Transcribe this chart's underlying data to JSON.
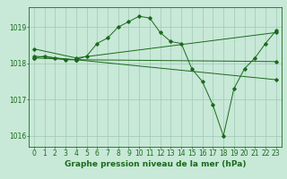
{
  "xlabel": "Graphe pression niveau de la mer (hPa)",
  "xlim": [
    -0.5,
    23.5
  ],
  "ylim": [
    1015.7,
    1019.55
  ],
  "yticks": [
    1016,
    1017,
    1018,
    1019
  ],
  "xticks": [
    0,
    1,
    2,
    3,
    4,
    5,
    6,
    7,
    8,
    9,
    10,
    11,
    12,
    13,
    14,
    15,
    16,
    17,
    18,
    19,
    20,
    21,
    22,
    23
  ],
  "bg_color": "#c8e8d8",
  "line_color": "#1a6b1a",
  "grid_color": "#a0c8b8",
  "curve1_x": [
    0,
    1,
    2,
    3,
    4,
    5,
    6,
    7,
    8,
    9,
    10,
    11,
    12,
    13,
    14,
    15,
    16,
    17,
    18,
    19,
    20,
    21,
    22,
    23
  ],
  "curve1_y": [
    1018.15,
    1018.2,
    1018.15,
    1018.1,
    1018.1,
    1018.2,
    1018.55,
    1018.7,
    1019.0,
    1019.15,
    1019.3,
    1019.25,
    1018.85,
    1018.6,
    1018.55,
    1017.85,
    1017.5,
    1016.85,
    1016.0,
    1017.3,
    1017.85,
    1018.15,
    1018.55,
    1018.9
  ],
  "curve2_x": [
    0,
    4,
    23
  ],
  "curve2_y": [
    1018.4,
    1018.15,
    1018.85
  ],
  "curve3_x": [
    0,
    4,
    23
  ],
  "curve3_y": [
    1018.15,
    1018.1,
    1017.55
  ],
  "curve4_x": [
    0,
    4,
    23
  ],
  "curve4_y": [
    1018.2,
    1018.1,
    1018.05
  ],
  "fontsize_label": 6.5,
  "fontsize_tick": 5.5
}
